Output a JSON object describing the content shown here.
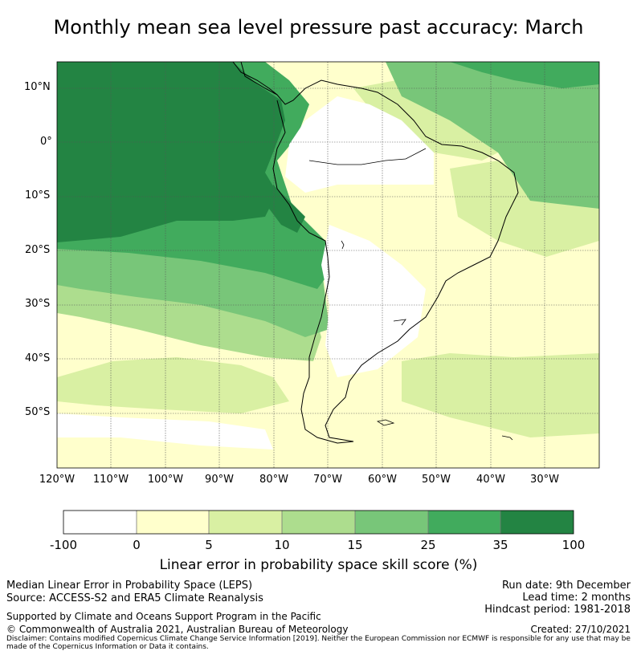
{
  "title": "Monthly mean sea level pressure past accuracy: March",
  "map": {
    "lat_labels": [
      "10°N",
      "0°",
      "10°S",
      "20°S",
      "30°S",
      "40°S",
      "50°S"
    ],
    "lon_labels": [
      "120°W",
      "110°W",
      "100°W",
      "90°W",
      "80°W",
      "70°W",
      "60°W",
      "50°W",
      "40°W",
      "30°W"
    ],
    "land_ocean_style": "filled skill score",
    "colors": {
      "b0": "#ffffff",
      "b1": "#ffffcc",
      "b2": "#d9f0a3",
      "b3": "#addd8e",
      "b4": "#78c679",
      "b5": "#41ab5d",
      "b6": "#238443"
    }
  },
  "colorbar": {
    "ticks": [
      "-100",
      "0",
      "5",
      "10",
      "15",
      "25",
      "35",
      "100"
    ],
    "label": "Linear error in probability space skill score (%)"
  },
  "footer": {
    "left1": "Median Linear Error in Probability Space (LEPS)",
    "left2": "Source: ACCESS-S2 and ERA5 Climate Reanalysis",
    "left3": "Supported by Climate and Oceans Support Program in the Pacific",
    "left4": "© Commonwealth of Australia 2021, Australian Bureau of Meteorology",
    "right1": "Run date: 9th December",
    "right2": "Lead time: 2 months",
    "right3": "Hindcast period: 1981-2018",
    "right4": "Created: 27/10/2021",
    "disclaimer": "Disclaimer: Contains modified Copernicus Climate Change Service Information [2019]. Neither the European Commission nor ECMWF is responsible for any use that may be made of the Copernicus Information or Data it contains."
  }
}
